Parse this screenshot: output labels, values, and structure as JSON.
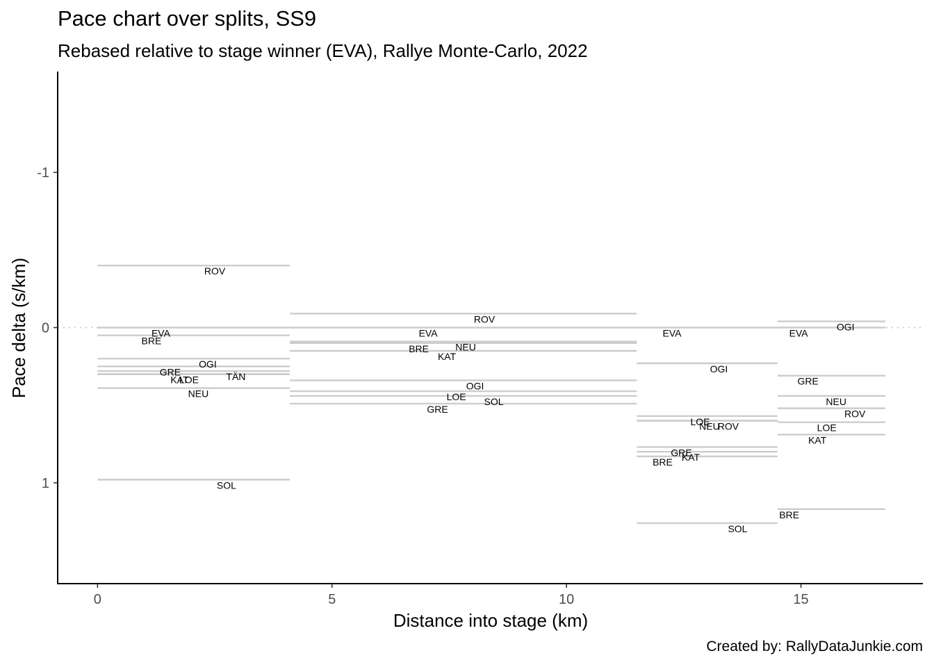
{
  "title": "Pace chart over splits, SS9",
  "subtitle": "Rebased relative to stage winner (EVA), Rallye Monte-Carlo, 2022",
  "caption": "Created by: RallyDataJunkie.com",
  "colors": {
    "segment": "#cccccc",
    "reference": "#cccccc",
    "axis": "#000000",
    "tick_text": "#4d4d4d"
  },
  "chart_data": {
    "type": "line",
    "xlabel": "Distance into stage (km)",
    "ylabel": "Pace delta (s/km)",
    "xlim": [
      -0.85,
      17.6
    ],
    "ylim": [
      1.65,
      -1.65
    ],
    "y_reversed": true,
    "x_ticks": [
      0,
      5,
      10,
      15
    ],
    "x_tick_labels": [
      "0",
      "5",
      "10",
      "15"
    ],
    "y_ticks": [
      -1,
      0,
      1
    ],
    "y_tick_labels": [
      "-1",
      "0",
      "1"
    ],
    "reference_line": 0,
    "grid": false,
    "legend": "none",
    "splits": [
      {
        "start": 0,
        "end": 4.1,
        "drivers": [
          {
            "code": "ROV",
            "pace": -0.4,
            "label_x": 2.5
          },
          {
            "code": "EVA",
            "pace": 0.0,
            "label_x": 1.35
          },
          {
            "code": "BRE",
            "pace": 0.05,
            "label_x": 1.15
          },
          {
            "code": "OGI",
            "pace": 0.2,
            "label_x": 2.35
          },
          {
            "code": "GRE",
            "pace": 0.25,
            "label_x": 1.55
          },
          {
            "code": "TÄN",
            "pace": 0.28,
            "label_x": 2.95
          },
          {
            "code": "KAT",
            "pace": 0.3,
            "label_x": 1.75
          },
          {
            "code": "LOE",
            "pace": 0.3,
            "label_x": 1.95
          },
          {
            "code": "NEU",
            "pace": 0.39,
            "label_x": 2.15
          },
          {
            "code": "SOL",
            "pace": 0.98,
            "label_x": 2.75
          }
        ]
      },
      {
        "start": 4.1,
        "end": 11.5,
        "drivers": [
          {
            "code": "ROV",
            "pace": -0.09,
            "label_x": 8.25
          },
          {
            "code": "EVA",
            "pace": 0.0,
            "label_x": 7.05
          },
          {
            "code": "NEU",
            "pace": 0.09,
            "label_x": 7.85
          },
          {
            "code": "BRE",
            "pace": 0.1,
            "label_x": 6.85
          },
          {
            "code": "KAT",
            "pace": 0.15,
            "label_x": 7.45
          },
          {
            "code": "OGI",
            "pace": 0.34,
            "label_x": 8.05
          },
          {
            "code": "LOE",
            "pace": 0.41,
            "label_x": 7.65
          },
          {
            "code": "SOL",
            "pace": 0.44,
            "label_x": 8.45
          },
          {
            "code": "GRE",
            "pace": 0.49,
            "label_x": 7.25
          }
        ]
      },
      {
        "start": 11.5,
        "end": 14.5,
        "drivers": [
          {
            "code": "EVA",
            "pace": 0.0,
            "label_x": 12.25
          },
          {
            "code": "OGI",
            "pace": 0.23,
            "label_x": 13.25
          },
          {
            "code": "LOE",
            "pace": 0.57,
            "label_x": 12.85
          },
          {
            "code": "NEU",
            "pace": 0.6,
            "label_x": 13.05
          },
          {
            "code": "ROV",
            "pace": 0.6,
            "label_x": 13.45
          },
          {
            "code": "GRE",
            "pace": 0.77,
            "label_x": 12.45
          },
          {
            "code": "KAT",
            "pace": 0.8,
            "label_x": 12.65
          },
          {
            "code": "BRE",
            "pace": 0.83,
            "label_x": 12.05
          },
          {
            "code": "SOL",
            "pace": 1.26,
            "label_x": 13.65
          }
        ]
      },
      {
        "start": 14.5,
        "end": 16.8,
        "drivers": [
          {
            "code": "OGI",
            "pace": -0.04,
            "label_x": 15.95
          },
          {
            "code": "EVA",
            "pace": 0.0,
            "label_x": 14.95
          },
          {
            "code": "GRE",
            "pace": 0.31,
            "label_x": 15.15
          },
          {
            "code": "NEU",
            "pace": 0.44,
            "label_x": 15.75
          },
          {
            "code": "ROV",
            "pace": 0.52,
            "label_x": 16.15
          },
          {
            "code": "LOE",
            "pace": 0.61,
            "label_x": 15.55
          },
          {
            "code": "KAT",
            "pace": 0.69,
            "label_x": 15.35
          },
          {
            "code": "BRE",
            "pace": 1.17,
            "label_x": 14.75
          }
        ]
      }
    ]
  }
}
